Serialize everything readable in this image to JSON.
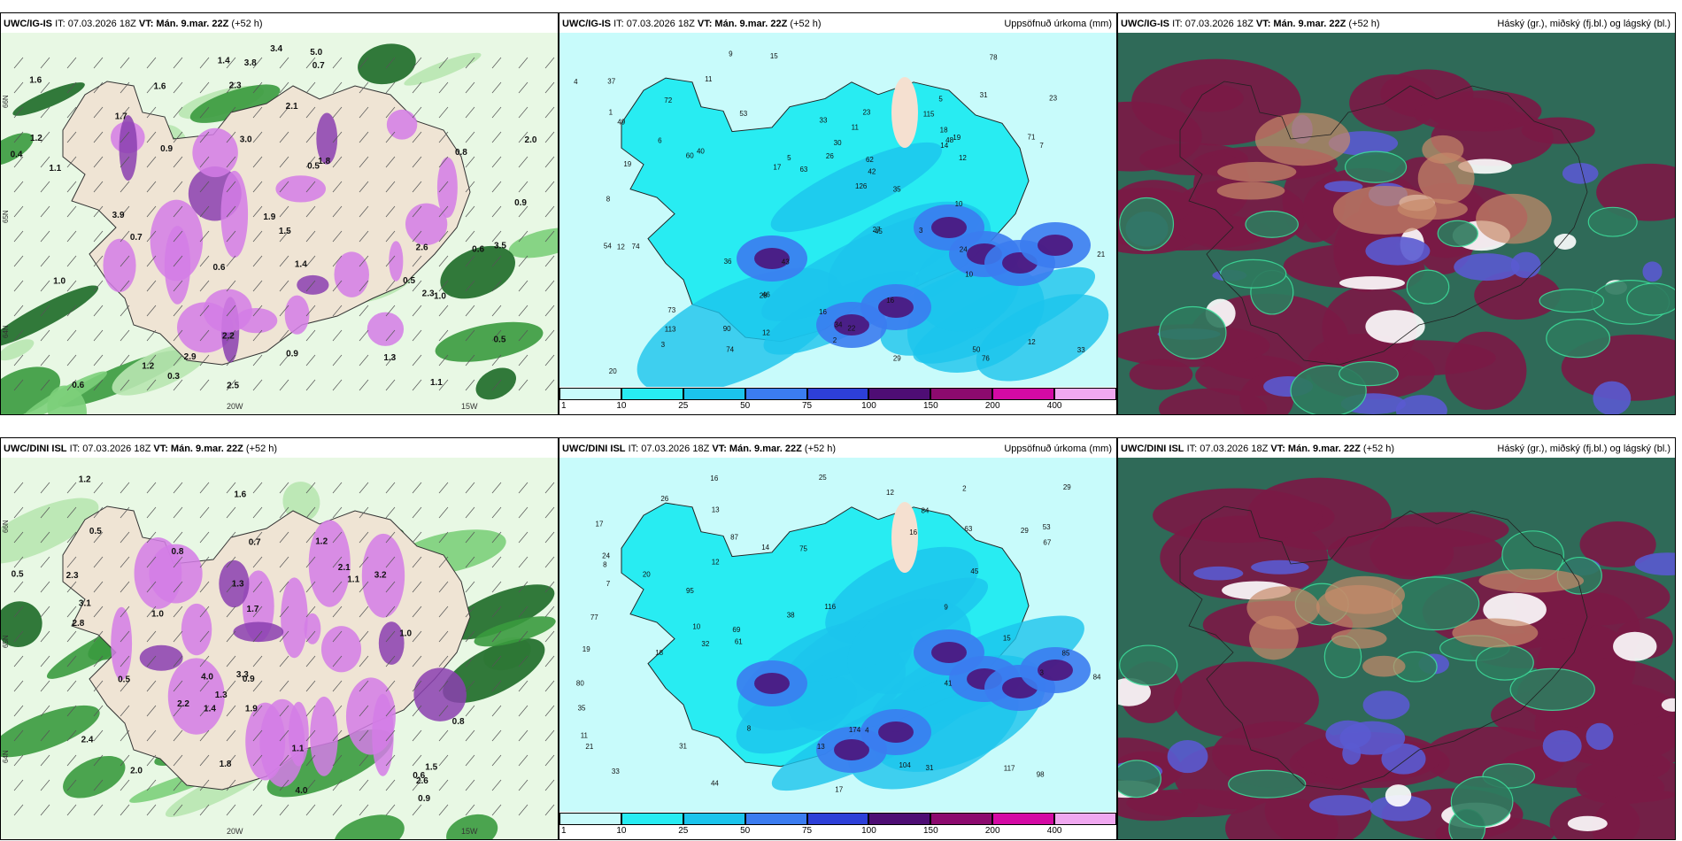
{
  "rows": [
    {
      "model": "UWC/IG-IS",
      "it": "IT: 07.03.2026 18Z",
      "vt": "VT: Mán. 9.mar. 22Z",
      "lead": "(+52 h)",
      "wind_labels": [
        "1.6",
        "0.6",
        "0.5",
        "0.7",
        "1.0",
        "3.5",
        "0.9",
        "1.5",
        "1.1",
        "2.3",
        "1.9",
        "0.5",
        "1.6",
        "2.9",
        "1.3",
        "2.2",
        "1.4",
        "0.8",
        "1.7",
        "0.4",
        "0.3",
        "2.6",
        "3.4",
        "2.3",
        "3.0",
        "3.9",
        "2.1",
        "1.4",
        "3.8",
        "0.9",
        "2.5",
        "0.7",
        "1.2",
        "0.6",
        "0.5",
        "0.6",
        "1.1",
        "1.0",
        "0.9",
        "2.0",
        "5.0",
        "1.8",
        "1.2"
      ],
      "lon_labels": [
        "20W",
        "15W"
      ],
      "lat_labels": [
        "66N",
        "65N",
        "64N"
      ]
    },
    {
      "model": "UWC/DINI ISL",
      "it": "IT: 07.03.2026 18Z",
      "vt": "VT: Mán. 9.mar. 22Z",
      "lead": "(+52 h)",
      "wind_labels": [
        "0.8",
        "1.1",
        "0.6",
        "1.3",
        "0.5",
        "1.5",
        "0.9",
        "2.2",
        "1.2",
        "2.0",
        "4.0",
        "2.4",
        "2.8",
        "2.1",
        "3.1",
        "1.9",
        "1.6",
        "0.7",
        "4.0",
        "2.3",
        "3.3",
        "1.0",
        "0.5",
        "1.8",
        "1.4",
        "1.7",
        "3.2",
        "2.6",
        "0.9",
        "1.1",
        "1.0",
        "0.8",
        "1.2",
        "0.5",
        "1.3"
      ],
      "lon_labels": [
        "20W",
        "15W"
      ],
      "lat_labels": [
        "66N",
        "65N",
        "64N"
      ]
    }
  ],
  "precip": {
    "title": "Uppsöfnuð úrkoma (mm)",
    "legend_ticks": [
      "1",
      "10",
      "25",
      "50",
      "75",
      "100",
      "150",
      "200",
      "400"
    ],
    "legend_colors": [
      "#c8fbfb",
      "#28ecf2",
      "#1bc4ec",
      "#3b7cf0",
      "#2d3fd8",
      "#4e0d74",
      "#8c0a6e",
      "#d40aa4",
      "#f0a8f0"
    ],
    "row1_values": [
      "4",
      "3",
      "2",
      "3",
      "10",
      "5",
      "5",
      "11",
      "7",
      "16",
      "12",
      "43",
      "23",
      "20",
      "27",
      "29",
      "34",
      "12",
      "19",
      "16",
      "60",
      "46",
      "53",
      "12",
      "10",
      "17",
      "30",
      "22",
      "21",
      "33",
      "49",
      "26",
      "37",
      "50",
      "73",
      "72",
      "71",
      "63",
      "35",
      "24",
      "42",
      "18",
      "48",
      "23",
      "76",
      "74",
      "78",
      "113",
      "74",
      "62",
      "40",
      "45",
      "126",
      "36",
      "90",
      "54",
      "115",
      "31",
      "33",
      "14",
      "28",
      "12",
      "19",
      "15",
      "11",
      "8",
      "6",
      "9",
      "1"
    ],
    "row2_values": [
      "2",
      "3",
      "33",
      "8",
      "7",
      "4",
      "21",
      "13",
      "19",
      "18",
      "38",
      "15",
      "24",
      "10",
      "16",
      "8",
      "12",
      "9",
      "17",
      "29",
      "25",
      "41",
      "61",
      "53",
      "80",
      "84",
      "87",
      "45",
      "31",
      "77",
      "44",
      "69",
      "75",
      "98",
      "104",
      "117",
      "85",
      "116",
      "174",
      "63",
      "95",
      "67",
      "84",
      "26",
      "32",
      "35",
      "31",
      "29",
      "20",
      "17",
      "13",
      "14",
      "16",
      "12",
      "11"
    ]
  },
  "cloud": {
    "title": "Háský (gr.), miðský (fj.bl.) og lágský (bl.)"
  }
}
